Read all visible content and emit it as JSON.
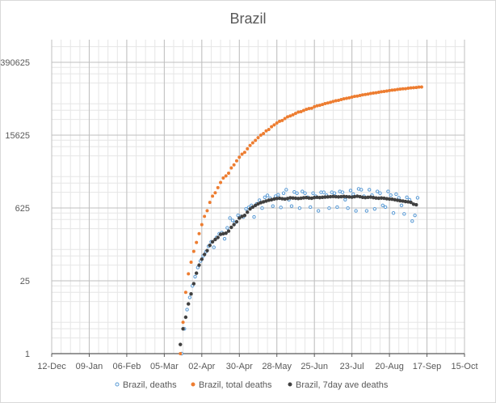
{
  "chart_data": {
    "type": "scatter",
    "title": "Brazil",
    "xlabel": "",
    "ylabel": "",
    "y_scale": "log5",
    "ylim": [
      1,
      390625
    ],
    "y_ticks": [
      1,
      25,
      625,
      15625,
      390625
    ],
    "y_tick_labels": [
      "1",
      "25",
      "625",
      "15625",
      "390625"
    ],
    "xlim": [
      "2019-12-12",
      "2020-10-15"
    ],
    "x_ticks": [
      "2019-12-12",
      "2020-01-09",
      "2020-02-06",
      "2020-03-05",
      "2020-04-02",
      "2020-04-30",
      "2020-05-28",
      "2020-06-25",
      "2020-07-23",
      "2020-08-20",
      "2020-09-17",
      "2020-10-15"
    ],
    "x_tick_labels": [
      "12-Dec",
      "09-Jan",
      "06-Feb",
      "05-Mar",
      "02-Apr",
      "30-Apr",
      "28-May",
      "25-Jun",
      "23-Jul",
      "20-Aug",
      "17-Sep",
      "15-Oct"
    ],
    "grid": true,
    "legend_position": "bottom",
    "colors": {
      "deaths": "#5b9bd5",
      "total_deaths": "#ed7d31",
      "ave_deaths": "#404040",
      "major_grid": "#bfbfbf",
      "minor_grid": "#e6e6e6",
      "axis": "#595959"
    },
    "series": [
      {
        "name": "Brazil, deaths",
        "key": "deaths",
        "points": [
          [
            "2020-03-18",
            1
          ],
          [
            "2020-03-20",
            3
          ],
          [
            "2020-03-22",
            7
          ],
          [
            "2020-03-24",
            12
          ],
          [
            "2020-03-26",
            20
          ],
          [
            "2020-03-28",
            30
          ],
          [
            "2020-03-30",
            45
          ],
          [
            "2020-04-01",
            60
          ],
          [
            "2020-04-03",
            75
          ],
          [
            "2020-04-05",
            90
          ],
          [
            "2020-04-07",
            115
          ],
          [
            "2020-04-09",
            140
          ],
          [
            "2020-04-11",
            110
          ],
          [
            "2020-04-13",
            170
          ],
          [
            "2020-04-15",
            200
          ],
          [
            "2020-04-17",
            210
          ],
          [
            "2020-04-19",
            160
          ],
          [
            "2020-04-21",
            260
          ],
          [
            "2020-04-23",
            400
          ],
          [
            "2020-04-25",
            360
          ],
          [
            "2020-04-27",
            330
          ],
          [
            "2020-04-29",
            450
          ],
          [
            "2020-05-01",
            430
          ],
          [
            "2020-05-03",
            420
          ],
          [
            "2020-05-05",
            600
          ],
          [
            "2020-05-07",
            640
          ],
          [
            "2020-05-09",
            700
          ],
          [
            "2020-05-11",
            420
          ],
          [
            "2020-05-13",
            750
          ],
          [
            "2020-05-15",
            880
          ],
          [
            "2020-05-17",
            620
          ],
          [
            "2020-05-19",
            1000
          ],
          [
            "2020-05-21",
            1090
          ],
          [
            "2020-05-23",
            960
          ],
          [
            "2020-05-25",
            680
          ],
          [
            "2020-05-27",
            1050
          ],
          [
            "2020-05-29",
            1120
          ],
          [
            "2020-05-31",
            640
          ],
          [
            "2020-06-02",
            1200
          ],
          [
            "2020-06-04",
            1400
          ],
          [
            "2020-06-06",
            900
          ],
          [
            "2020-06-08",
            680
          ],
          [
            "2020-06-10",
            1270
          ],
          [
            "2020-06-12",
            1200
          ],
          [
            "2020-06-14",
            620
          ],
          [
            "2020-06-16",
            1300
          ],
          [
            "2020-06-18",
            1200
          ],
          [
            "2020-06-20",
            1000
          ],
          [
            "2020-06-22",
            650
          ],
          [
            "2020-06-24",
            1200
          ],
          [
            "2020-06-26",
            1050
          ],
          [
            "2020-06-28",
            550
          ],
          [
            "2020-06-30",
            1250
          ],
          [
            "2020-07-02",
            1250
          ],
          [
            "2020-07-04",
            1100
          ],
          [
            "2020-07-06",
            620
          ],
          [
            "2020-07-08",
            1250
          ],
          [
            "2020-07-10",
            1200
          ],
          [
            "2020-07-12",
            650
          ],
          [
            "2020-07-14",
            1300
          ],
          [
            "2020-07-16",
            1250
          ],
          [
            "2020-07-18",
            900
          ],
          [
            "2020-07-20",
            620
          ],
          [
            "2020-07-22",
            1350
          ],
          [
            "2020-07-24",
            1150
          ],
          [
            "2020-07-26",
            550
          ],
          [
            "2020-07-28",
            1450
          ],
          [
            "2020-07-30",
            1400
          ],
          [
            "2020-08-01",
            1050
          ],
          [
            "2020-08-03",
            550
          ],
          [
            "2020-08-05",
            1400
          ],
          [
            "2020-08-07",
            1100
          ],
          [
            "2020-08-09",
            600
          ],
          [
            "2020-08-11",
            1300
          ],
          [
            "2020-08-13",
            1200
          ],
          [
            "2020-08-15",
            700
          ],
          [
            "2020-08-17",
            650
          ],
          [
            "2020-08-19",
            1300
          ],
          [
            "2020-08-21",
            1100
          ],
          [
            "2020-08-23",
            500
          ],
          [
            "2020-08-25",
            1150
          ],
          [
            "2020-08-27",
            980
          ],
          [
            "2020-08-29",
            700
          ],
          [
            "2020-08-31",
            480
          ],
          [
            "2020-09-02",
            1000
          ],
          [
            "2020-09-04",
            900
          ],
          [
            "2020-09-06",
            350
          ],
          [
            "2020-09-08",
            450
          ],
          [
            "2020-09-10",
            980
          ]
        ]
      },
      {
        "name": "Brazil, total deaths",
        "key": "total_deaths",
        "points": [
          [
            "2020-03-17",
            1
          ],
          [
            "2020-03-19",
            4
          ],
          [
            "2020-03-21",
            15
          ],
          [
            "2020-03-23",
            34
          ],
          [
            "2020-03-25",
            57
          ],
          [
            "2020-03-27",
            92
          ],
          [
            "2020-03-29",
            136
          ],
          [
            "2020-03-31",
            201
          ],
          [
            "2020-04-02",
            299
          ],
          [
            "2020-04-04",
            432
          ],
          [
            "2020-04-06",
            553
          ],
          [
            "2020-04-08",
            800
          ],
          [
            "2020-04-10",
            1056
          ],
          [
            "2020-04-12",
            1223
          ],
          [
            "2020-04-14",
            1532
          ],
          [
            "2020-04-16",
            1924
          ],
          [
            "2020-04-18",
            2347
          ],
          [
            "2020-04-20",
            2575
          ],
          [
            "2020-04-22",
            2906
          ],
          [
            "2020-04-24",
            3670
          ],
          [
            "2020-04-26",
            4205
          ],
          [
            "2020-04-28",
            5017
          ],
          [
            "2020-04-30",
            5901
          ],
          [
            "2020-05-02",
            6750
          ],
          [
            "2020-05-04",
            7321
          ],
          [
            "2020-05-06",
            8536
          ],
          [
            "2020-05-08",
            9897
          ],
          [
            "2020-05-10",
            11123
          ],
          [
            "2020-05-12",
            12400
          ],
          [
            "2020-05-14",
            13993
          ],
          [
            "2020-05-16",
            15633
          ],
          [
            "2020-05-18",
            16792
          ],
          [
            "2020-05-20",
            18859
          ],
          [
            "2020-05-22",
            20047
          ],
          [
            "2020-05-24",
            22666
          ],
          [
            "2020-05-26",
            24512
          ],
          [
            "2020-05-28",
            26754
          ],
          [
            "2020-05-30",
            28834
          ],
          [
            "2020-06-01",
            29937
          ],
          [
            "2020-06-03",
            32548
          ],
          [
            "2020-06-05",
            35026
          ],
          [
            "2020-06-07",
            36455
          ],
          [
            "2020-06-09",
            38406
          ],
          [
            "2020-06-11",
            40919
          ],
          [
            "2020-06-13",
            43332
          ],
          [
            "2020-06-15",
            44118
          ],
          [
            "2020-06-17",
            46510
          ],
          [
            "2020-06-19",
            48954
          ],
          [
            "2020-06-21",
            50617
          ],
          [
            "2020-06-23",
            51271
          ],
          [
            "2020-06-25",
            54971
          ],
          [
            "2020-06-27",
            57070
          ],
          [
            "2020-06-29",
            58314
          ],
          [
            "2020-07-01",
            60632
          ],
          [
            "2020-07-03",
            63174
          ],
          [
            "2020-07-05",
            64867
          ],
          [
            "2020-07-07",
            66741
          ],
          [
            "2020-07-09",
            69184
          ],
          [
            "2020-07-11",
            71469
          ],
          [
            "2020-07-13",
            72833
          ],
          [
            "2020-07-15",
            75366
          ],
          [
            "2020-07-17",
            77851
          ],
          [
            "2020-07-19",
            79488
          ],
          [
            "2020-07-21",
            81487
          ],
          [
            "2020-07-23",
            84082
          ],
          [
            "2020-07-25",
            86449
          ],
          [
            "2020-07-27",
            87618
          ],
          [
            "2020-07-29",
            90134
          ],
          [
            "2020-07-31",
            92475
          ],
          [
            "2020-08-02",
            94104
          ],
          [
            "2020-08-04",
            95819
          ],
          [
            "2020-08-06",
            98493
          ],
          [
            "2020-08-08",
            100477
          ],
          [
            "2020-08-10",
            101752
          ],
          [
            "2020-08-12",
            104201
          ],
          [
            "2020-08-14",
            106523
          ],
          [
            "2020-08-16",
            107852
          ],
          [
            "2020-08-18",
            109888
          ],
          [
            "2020-08-20",
            112304
          ],
          [
            "2020-08-22",
            114250
          ],
          [
            "2020-08-24",
            115309
          ],
          [
            "2020-08-26",
            117665
          ],
          [
            "2020-08-28",
            119504
          ],
          [
            "2020-08-30",
            120828
          ],
          [
            "2020-09-01",
            121381
          ],
          [
            "2020-09-03",
            124614
          ],
          [
            "2020-09-05",
            126203
          ],
          [
            "2020-09-07",
            126960
          ],
          [
            "2020-09-09",
            128539
          ],
          [
            "2020-09-11",
            130396
          ],
          [
            "2020-09-13",
            131210
          ]
        ]
      },
      {
        "name": "Brazil, 7day ave deaths",
        "key": "ave_deaths",
        "points": [
          [
            "2020-03-17",
            1.5
          ],
          [
            "2020-03-19",
            3
          ],
          [
            "2020-03-21",
            5
          ],
          [
            "2020-03-23",
            9
          ],
          [
            "2020-03-25",
            14
          ],
          [
            "2020-03-27",
            22
          ],
          [
            "2020-03-29",
            35
          ],
          [
            "2020-03-31",
            50
          ],
          [
            "2020-04-02",
            65
          ],
          [
            "2020-04-04",
            80
          ],
          [
            "2020-04-06",
            95
          ],
          [
            "2020-04-08",
            120
          ],
          [
            "2020-04-10",
            140
          ],
          [
            "2020-04-12",
            155
          ],
          [
            "2020-04-14",
            170
          ],
          [
            "2020-04-16",
            195
          ],
          [
            "2020-04-18",
            200
          ],
          [
            "2020-04-20",
            205
          ],
          [
            "2020-04-22",
            225
          ],
          [
            "2020-04-24",
            265
          ],
          [
            "2020-04-26",
            300
          ],
          [
            "2020-04-28",
            340
          ],
          [
            "2020-04-30",
            400
          ],
          [
            "2020-05-02",
            430
          ],
          [
            "2020-05-04",
            450
          ],
          [
            "2020-05-06",
            520
          ],
          [
            "2020-05-08",
            600
          ],
          [
            "2020-05-10",
            650
          ],
          [
            "2020-05-12",
            700
          ],
          [
            "2020-05-14",
            750
          ],
          [
            "2020-05-16",
            790
          ],
          [
            "2020-05-18",
            820
          ],
          [
            "2020-05-20",
            850
          ],
          [
            "2020-05-22",
            880
          ],
          [
            "2020-05-24",
            900
          ],
          [
            "2020-05-26",
            930
          ],
          [
            "2020-05-28",
            950
          ],
          [
            "2020-05-30",
            960
          ],
          [
            "2020-06-01",
            940
          ],
          [
            "2020-06-03",
            930
          ],
          [
            "2020-06-05",
            950
          ],
          [
            "2020-06-07",
            980
          ],
          [
            "2020-06-09",
            970
          ],
          [
            "2020-06-11",
            960
          ],
          [
            "2020-06-13",
            950
          ],
          [
            "2020-06-15",
            960
          ],
          [
            "2020-06-17",
            980
          ],
          [
            "2020-06-19",
            990
          ],
          [
            "2020-06-21",
            970
          ],
          [
            "2020-06-23",
            960
          ],
          [
            "2020-06-25",
            990
          ],
          [
            "2020-06-27",
            1000
          ],
          [
            "2020-06-29",
            990
          ],
          [
            "2020-07-01",
            1000
          ],
          [
            "2020-07-03",
            1010
          ],
          [
            "2020-07-05",
            1020
          ],
          [
            "2020-07-07",
            1030
          ],
          [
            "2020-07-09",
            1040
          ],
          [
            "2020-07-11",
            1030
          ],
          [
            "2020-07-13",
            1020
          ],
          [
            "2020-07-15",
            1030
          ],
          [
            "2020-07-17",
            1040
          ],
          [
            "2020-07-19",
            1030
          ],
          [
            "2020-07-21",
            1020
          ],
          [
            "2020-07-23",
            1010
          ],
          [
            "2020-07-25",
            1030
          ],
          [
            "2020-07-27",
            1050
          ],
          [
            "2020-07-29",
            1030
          ],
          [
            "2020-07-31",
            1000
          ],
          [
            "2020-08-02",
            990
          ],
          [
            "2020-08-04",
            1000
          ],
          [
            "2020-08-06",
            1010
          ],
          [
            "2020-08-08",
            990
          ],
          [
            "2020-08-10",
            970
          ],
          [
            "2020-08-12",
            960
          ],
          [
            "2020-08-14",
            970
          ],
          [
            "2020-08-16",
            960
          ],
          [
            "2020-08-18",
            940
          ],
          [
            "2020-08-20",
            930
          ],
          [
            "2020-08-22",
            920
          ],
          [
            "2020-08-24",
            900
          ],
          [
            "2020-08-26",
            880
          ],
          [
            "2020-08-28",
            860
          ],
          [
            "2020-08-30",
            850
          ],
          [
            "2020-09-01",
            830
          ],
          [
            "2020-09-03",
            820
          ],
          [
            "2020-09-05",
            800
          ],
          [
            "2020-09-07",
            740
          ],
          [
            "2020-09-09",
            720
          ]
        ]
      }
    ]
  }
}
